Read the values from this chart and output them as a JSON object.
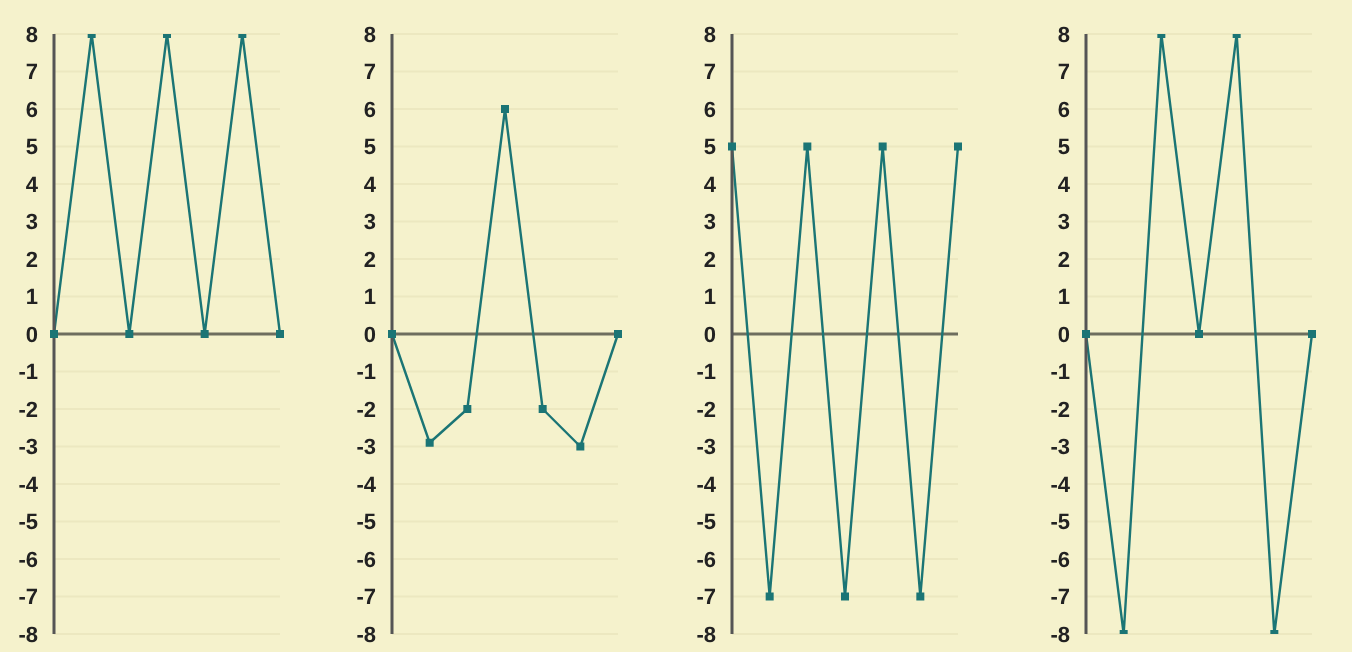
{
  "chart_data": [
    {
      "type": "line",
      "categories": [
        null,
        null,
        null,
        null,
        null,
        null,
        null
      ],
      "series": [
        {
          "color": "#1b7575",
          "values": [
            0,
            8,
            0,
            8,
            0,
            8,
            0
          ]
        }
      ],
      "ylim": [
        -8,
        8
      ],
      "yticks": [
        -8,
        -7,
        -6,
        -5,
        -4,
        -3,
        -2,
        -1,
        0,
        1,
        2,
        3,
        4,
        5,
        6,
        7,
        8
      ],
      "grid": "y",
      "marker": "square",
      "tick_labels": "y",
      "ref_lines": [
        {
          "axis": "y",
          "value": 0,
          "color": "#6e6e5e"
        }
      ]
    },
    {
      "type": "line",
      "categories": [
        null,
        null,
        null,
        null,
        null,
        null,
        null
      ],
      "series": [
        {
          "color": "#1b7575",
          "values": [
            0,
            -2.9,
            -2,
            6,
            -2,
            -3,
            0
          ]
        }
      ],
      "ylim": [
        -8,
        8
      ],
      "yticks": [
        -8,
        -7,
        -6,
        -5,
        -4,
        -3,
        -2,
        -1,
        0,
        1,
        2,
        3,
        4,
        5,
        6,
        7,
        8
      ],
      "grid": "y",
      "marker": "square",
      "tick_labels": "y",
      "ref_lines": [
        {
          "axis": "y",
          "value": 0,
          "color": "#6e6e5e"
        }
      ]
    },
    {
      "type": "line",
      "categories": [
        null,
        null,
        null,
        null,
        null,
        null,
        null
      ],
      "series": [
        {
          "color": "#1b7575",
          "values": [
            5,
            -7,
            5,
            -7,
            5,
            -7,
            5
          ]
        }
      ],
      "ylim": [
        -8,
        8
      ],
      "yticks": [
        -8,
        -7,
        -6,
        -5,
        -4,
        -3,
        -2,
        -1,
        0,
        1,
        2,
        3,
        4,
        5,
        6,
        7,
        8
      ],
      "grid": "y",
      "marker": "square",
      "tick_labels": "y",
      "ref_lines": [
        {
          "axis": "y",
          "value": 0,
          "color": "#6e6e5e"
        }
      ]
    },
    {
      "type": "line",
      "categories": [
        null,
        null,
        null,
        null,
        null,
        null,
        null
      ],
      "series": [
        {
          "color": "#1b7575",
          "values": [
            0,
            -8,
            8,
            0,
            8,
            -8,
            0
          ]
        }
      ],
      "ylim": [
        -8,
        8
      ],
      "yticks": [
        -8,
        -7,
        -6,
        -5,
        -4,
        -3,
        -2,
        -1,
        0,
        1,
        2,
        3,
        4,
        5,
        6,
        7,
        8
      ],
      "grid": "y",
      "marker": "square",
      "tick_labels": "y",
      "ref_lines": [
        {
          "axis": "y",
          "value": 0,
          "color": "#6e6e5e"
        }
      ]
    }
  ]
}
